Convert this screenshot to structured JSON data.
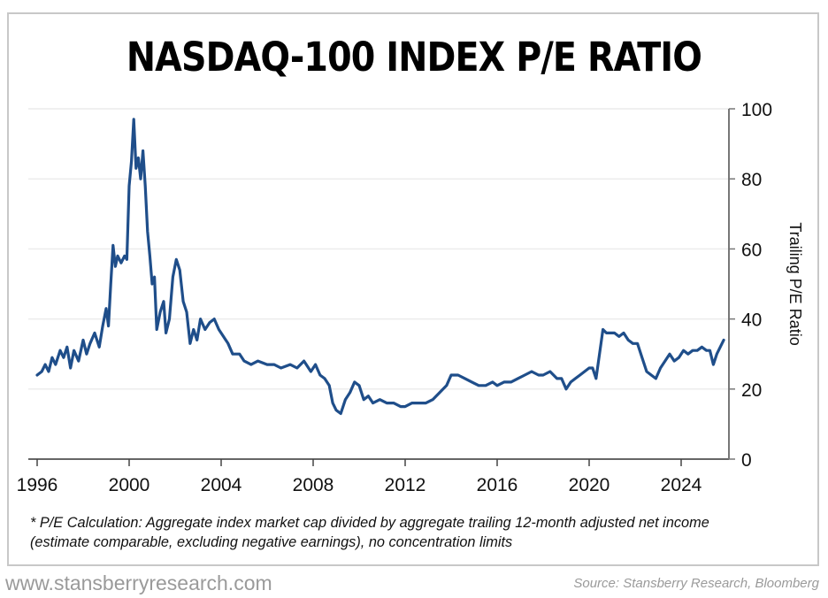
{
  "chart_data": {
    "type": "line",
    "title": "NASDAQ-100 INDEX P/E RATIO",
    "xlabel": "",
    "ylabel": "Trailing P/E Ratio",
    "y_axis_side": "right",
    "xlim": [
      1996,
      2026.1
    ],
    "ylim": [
      0,
      100
    ],
    "x_ticks": [
      1996,
      2000,
      2004,
      2008,
      2012,
      2016,
      2020,
      2024
    ],
    "x_tick_labels": [
      "1996",
      "2000",
      "2004",
      "2008",
      "2012",
      "2016",
      "2020",
      "2024"
    ],
    "y_ticks": [
      0,
      20,
      40,
      60,
      80,
      100
    ],
    "y_tick_labels": [
      "0",
      "20",
      "40",
      "60",
      "80",
      "100"
    ],
    "grid": "horizontal",
    "legend": "none",
    "series": [
      {
        "name": "NASDAQ-100 Trailing P/E",
        "color": "#1f4e8a",
        "x": [
          1996.0,
          1996.2,
          1996.35,
          1996.5,
          1996.65,
          1996.8,
          1997.0,
          1997.15,
          1997.3,
          1997.45,
          1997.6,
          1997.8,
          1998.0,
          1998.15,
          1998.3,
          1998.5,
          1998.7,
          1998.85,
          1999.0,
          1999.1,
          1999.2,
          1999.3,
          1999.4,
          1999.5,
          1999.65,
          1999.8,
          1999.9,
          2000.0,
          2000.1,
          2000.2,
          2000.3,
          2000.4,
          2000.5,
          2000.6,
          2000.7,
          2000.8,
          2000.9,
          2001.0,
          2001.1,
          2001.2,
          2001.35,
          2001.5,
          2001.6,
          2001.75,
          2001.9,
          2002.05,
          2002.2,
          2002.35,
          2002.5,
          2002.65,
          2002.8,
          2002.95,
          2003.1,
          2003.3,
          2003.5,
          2003.7,
          2003.9,
          2004.1,
          2004.3,
          2004.5,
          2004.8,
          2005.0,
          2005.3,
          2005.6,
          2006.0,
          2006.3,
          2006.6,
          2007.0,
          2007.3,
          2007.6,
          2007.9,
          2008.1,
          2008.3,
          2008.5,
          2008.7,
          2008.85,
          2009.0,
          2009.2,
          2009.4,
          2009.6,
          2009.8,
          2010.0,
          2010.2,
          2010.4,
          2010.6,
          2010.9,
          2011.2,
          2011.5,
          2011.8,
          2012.0,
          2012.3,
          2012.6,
          2012.9,
          2013.2,
          2013.5,
          2013.8,
          2014.0,
          2014.3,
          2014.6,
          2014.9,
          2015.2,
          2015.5,
          2015.8,
          2016.0,
          2016.3,
          2016.6,
          2016.9,
          2017.2,
          2017.5,
          2017.8,
          2018.0,
          2018.3,
          2018.6,
          2018.8,
          2019.0,
          2019.2,
          2019.4,
          2019.6,
          2019.8,
          2020.0,
          2020.15,
          2020.3,
          2020.45,
          2020.6,
          2020.75,
          2020.9,
          2021.1,
          2021.3,
          2021.5,
          2021.7,
          2021.9,
          2022.1,
          2022.3,
          2022.5,
          2022.7,
          2022.9,
          2023.1,
          2023.3,
          2023.5,
          2023.7,
          2023.9,
          2024.1,
          2024.3,
          2024.5,
          2024.7,
          2024.9,
          2025.1,
          2025.25,
          2025.4,
          2025.55,
          2025.7,
          2025.85
        ],
        "y": [
          24,
          25,
          27,
          25,
          29,
          27,
          31,
          29,
          32,
          26,
          31,
          28,
          34,
          30,
          33,
          36,
          32,
          38,
          43,
          38,
          50,
          61,
          55,
          58,
          56,
          58,
          57,
          78,
          85,
          97,
          83,
          86,
          80,
          88,
          78,
          65,
          58,
          50,
          52,
          37,
          42,
          45,
          36,
          40,
          52,
          57,
          54,
          45,
          42,
          33,
          37,
          34,
          40,
          37,
          39,
          40,
          37,
          35,
          33,
          30,
          30,
          28,
          27,
          28,
          27,
          27,
          26,
          27,
          26,
          28,
          25,
          27,
          24,
          23,
          21,
          16,
          14,
          13,
          17,
          19,
          22,
          21,
          17,
          18,
          16,
          17,
          16,
          16,
          15,
          15,
          16,
          16,
          16,
          17,
          19,
          21,
          24,
          24,
          23,
          22,
          21,
          21,
          22,
          21,
          22,
          22,
          23,
          24,
          25,
          24,
          24,
          25,
          23,
          23,
          20,
          22,
          23,
          24,
          25,
          26,
          26,
          23,
          30,
          37,
          36,
          36,
          36,
          35,
          36,
          34,
          33,
          33,
          29,
          25,
          24,
          23,
          26,
          28,
          30,
          28,
          29,
          31,
          30,
          31,
          31,
          32,
          31,
          31,
          27,
          30,
          32,
          34
        ]
      }
    ]
  },
  "header": {
    "title": "NASDAQ-100 INDEX P/E RATIO"
  },
  "footnote": "* P/E Calculation: Aggregate index market cap divided by aggregate trailing 12-month adjusted net income (estimate comparable, excluding negative earnings), no concentration limits",
  "footer": {
    "website": "www.stansberryresearch.com",
    "source": "Source: Stansberry Research, Bloomberg"
  }
}
